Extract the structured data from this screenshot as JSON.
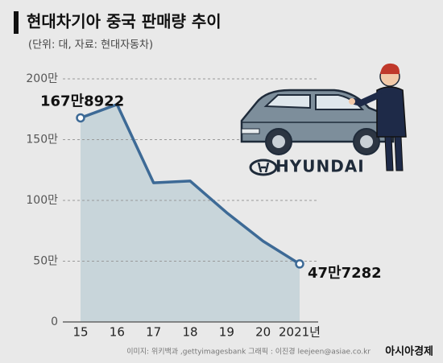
{
  "chart_data": {
    "type": "area-line",
    "title": "현대차기아 중국 판매량 추이",
    "subtitle": "(단위: 대, 자료: 현대자동차)",
    "categories": [
      "15",
      "16",
      "17",
      "18",
      "19",
      "20",
      "2021년"
    ],
    "values": [
      1678922,
      1790000,
      1145000,
      1160000,
      900000,
      665000,
      477282
    ],
    "value_labels": [
      "167만8922",
      null,
      null,
      null,
      null,
      null,
      "47만7282"
    ],
    "color": "#3d6a96",
    "fill": "#c8d5da",
    "ylim": [
      0,
      2000000
    ],
    "yticks": [
      0,
      {
        "value": 500000,
        "label": "50만"
      },
      {
        "value": 1000000,
        "label": "100만"
      },
      {
        "value": 1500000,
        "label": "150만"
      },
      {
        "value": 2000000,
        "label": "200만"
      }
    ],
    "grid": true,
    "logo_text": "HYUNDAI",
    "credit": "이미지: 위키백과 ,gettyimagesbank   그래픽 : 이진경 leejeen@asiae.co.kr",
    "brand": "아시아경제"
  }
}
